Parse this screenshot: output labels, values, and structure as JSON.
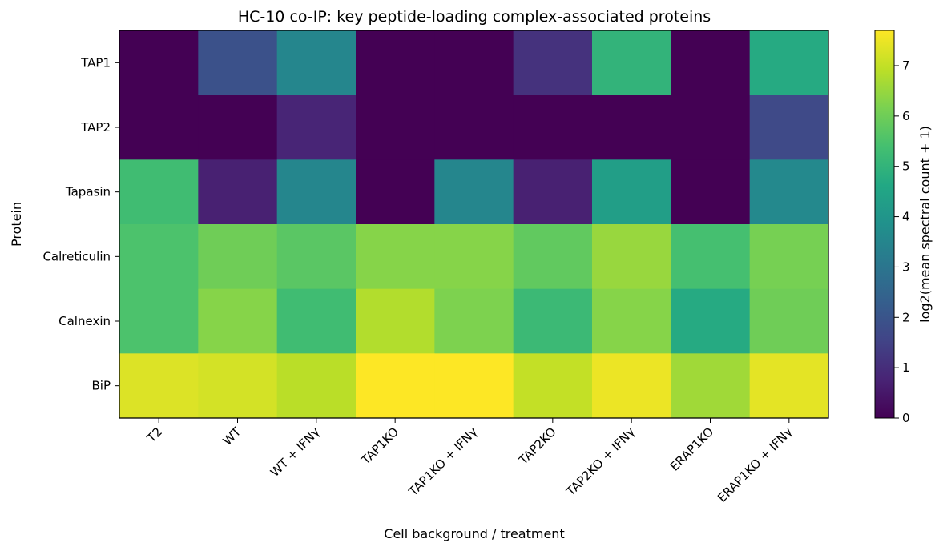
{
  "chart_data": {
    "type": "heatmap",
    "title": "HC-10 co-IP: key peptide-loading complex-associated proteins",
    "xlabel": "Cell background / treatment",
    "ylabel": "Protein",
    "x_categories": [
      "T2",
      "WT",
      "WT + IFNγ",
      "TAP1KO",
      "TAP1KO + IFNγ",
      "TAP2KO",
      "TAP2KO + IFNγ",
      "ERAP1KO",
      "ERAP1KO + IFNγ"
    ],
    "y_categories": [
      "TAP1",
      "TAP2",
      "Tapasin",
      "Calreticulin",
      "Calnexin",
      "BiP"
    ],
    "values": [
      [
        0.0,
        1.9,
        3.5,
        0.0,
        0.0,
        1.1,
        5.0,
        0.0,
        4.7
      ],
      [
        0.0,
        0.0,
        0.8,
        0.0,
        0.0,
        0.0,
        0.0,
        0.0,
        1.7
      ],
      [
        5.3,
        0.7,
        3.5,
        0.0,
        3.5,
        0.7,
        4.3,
        0.0,
        3.6
      ],
      [
        5.5,
        6.0,
        5.7,
        6.3,
        6.3,
        5.8,
        6.5,
        5.4,
        6.1
      ],
      [
        5.5,
        6.3,
        5.3,
        6.8,
        6.2,
        5.2,
        6.3,
        4.7,
        6.0
      ],
      [
        7.3,
        7.2,
        6.9,
        7.7,
        7.7,
        7.0,
        7.5,
        6.6,
        7.4
      ]
    ],
    "colorbar": {
      "label": "log2(mean spectral count + 1)",
      "range": [
        0,
        7.7
      ],
      "ticks": [
        0,
        1,
        2,
        3,
        4,
        5,
        6,
        7
      ],
      "colormap": "viridis"
    }
  }
}
